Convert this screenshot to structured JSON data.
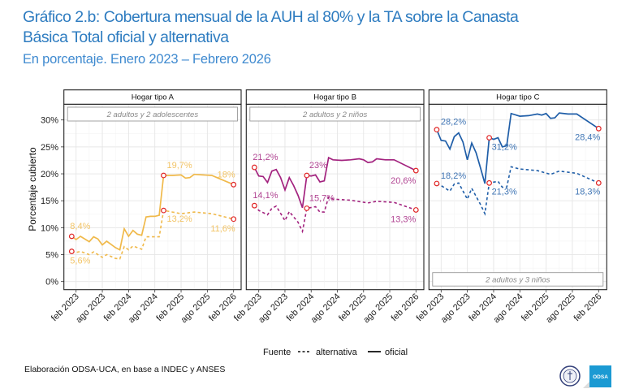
{
  "title": {
    "line1": "Gráfico 2.b: Cobertura mensual de la AUH al 80% y la TA sobre la Canasta",
    "line2": "Básica Total oficial y alternativa"
  },
  "subtitle": "En porcentaje. Enero 2023 – Febrero 2026",
  "footer": "Elaboración ODSA-UCA, en base a INDEC y ANSES",
  "logos": {
    "odsa": "ODSA",
    "seal": "UCA seal"
  },
  "colors": {
    "marker": "#e02424",
    "A": "#f0b94a",
    "B": "#a3237f",
    "C": "#1f5ea8"
  },
  "chart_data": {
    "type": "line",
    "ylabel": "Porcentaje cubierto",
    "ylim": [
      -1.5,
      32.5
    ],
    "yticks": [
      0,
      5,
      10,
      15,
      20,
      25,
      30
    ],
    "ytick_labels": [
      "0%",
      "5%",
      "10%",
      "15%",
      "20%",
      "25%",
      "30%"
    ],
    "x_unit": "months since feb 2023",
    "xticks": [
      0,
      6,
      12,
      18,
      24,
      30,
      36
    ],
    "xtick_labels": [
      "feb 2023",
      "ago 2023",
      "feb 2024",
      "ago 2024",
      "feb 2025",
      "ago 2025",
      "feb 2026"
    ],
    "legend": {
      "title": "Fuente",
      "items": [
        {
          "name": "alternativa",
          "style": "dashed"
        },
        {
          "name": "oficial",
          "style": "solid"
        }
      ],
      "placement": "bottom"
    },
    "panels": [
      {
        "strip": "Hogar tipo A",
        "note": "2 adultos y 2 adolescentes",
        "color_key": "A",
        "oficial": {
          "x": [
            -1,
            0,
            1,
            3,
            4,
            5,
            6,
            7,
            8,
            9,
            10,
            11,
            12,
            13,
            14,
            15,
            16,
            17,
            18,
            19,
            20,
            22,
            24,
            25,
            26,
            27,
            29,
            31,
            36
          ],
          "y": [
            8.4,
            7.8,
            8.4,
            7.4,
            8.3,
            7.9,
            6.8,
            7.5,
            6.9,
            6.3,
            5.9,
            9.8,
            8.4,
            9.5,
            8.8,
            8.6,
            12.0,
            12.1,
            12.1,
            12.3,
            19.7,
            19.7,
            19.8,
            19.2,
            19.3,
            19.9,
            19.8,
            19.7,
            18.0
          ]
        },
        "alternativa": {
          "x": [
            -1,
            0,
            1,
            3,
            4,
            6,
            7,
            9,
            10,
            11,
            12,
            13,
            14,
            15,
            16,
            18,
            19,
            20,
            22,
            24,
            27,
            31,
            36
          ],
          "y": [
            5.6,
            5.4,
            5.6,
            5.0,
            5.5,
            4.5,
            5.0,
            4.3,
            4.2,
            6.5,
            5.9,
            6.6,
            6.3,
            6.0,
            8.3,
            8.3,
            8.3,
            13.2,
            12.9,
            12.6,
            12.9,
            12.6,
            11.6
          ]
        },
        "labels": [
          "8,4%",
          "19,7%",
          "18%",
          "5,6%",
          "13,2%",
          "11,6%"
        ]
      },
      {
        "strip": "Hogar tipo B",
        "note": "2 adultos y 2 niños",
        "color_key": "B",
        "oficial": {
          "x": [
            -1,
            0,
            1,
            2,
            3,
            4,
            5,
            6,
            7,
            8,
            9,
            10,
            11,
            12,
            13,
            14,
            15,
            16,
            17,
            19,
            21,
            23,
            24,
            25,
            26,
            27,
            29,
            31,
            36
          ],
          "y": [
            21.2,
            19.6,
            19.5,
            18.4,
            20.5,
            20.8,
            19.3,
            17.0,
            19.3,
            17.8,
            16.0,
            13.7,
            19.7,
            19.6,
            19.8,
            18.5,
            18.7,
            23.0,
            22.6,
            22.5,
            22.6,
            22.8,
            22.6,
            22.1,
            22.2,
            22.8,
            22.6,
            22.6,
            20.6
          ]
        },
        "alternativa": {
          "x": [
            -1,
            0,
            2,
            3,
            4,
            6,
            7,
            9,
            10,
            11,
            13,
            14,
            15,
            16,
            17,
            21,
            25,
            27,
            31,
            36
          ],
          "y": [
            14.1,
            13.2,
            12.4,
            13.6,
            14.0,
            11.3,
            13.0,
            11.0,
            9.3,
            13.6,
            13.9,
            12.9,
            12.9,
            15.7,
            15.3,
            15.1,
            14.6,
            14.9,
            14.7,
            13.3
          ]
        },
        "labels": [
          "21,2%",
          "23%",
          "20,6%",
          "14,1%",
          "15,7%",
          "13,3%"
        ]
      },
      {
        "strip": "Hogar tipo C",
        "note": "2 adultos y 3 niños",
        "color_key": "C",
        "oficial": {
          "x": [
            -1,
            0,
            1,
            2,
            3,
            4,
            5,
            6,
            7,
            8,
            9,
            10,
            11,
            12,
            13,
            14,
            15,
            16,
            18,
            20,
            22,
            23,
            24,
            25,
            26,
            27,
            29,
            31,
            36
          ],
          "y": [
            28.2,
            26.2,
            26.1,
            24.6,
            26.9,
            27.6,
            25.9,
            22.6,
            25.7,
            23.9,
            21.1,
            18.2,
            26.7,
            26.4,
            26.7,
            25.0,
            25.2,
            31.2,
            30.7,
            30.8,
            31.1,
            30.9,
            31.2,
            30.3,
            30.4,
            31.3,
            31.1,
            31.1,
            28.4
          ]
        },
        "alternativa": {
          "x": [
            -1,
            0,
            2,
            3,
            4,
            6,
            7,
            9,
            10,
            11,
            13,
            14,
            15,
            16,
            18,
            22,
            25,
            27,
            31,
            36
          ],
          "y": [
            18.2,
            17.8,
            16.8,
            18.1,
            18.3,
            15.3,
            17.3,
            14.3,
            12.6,
            18.3,
            18.6,
            17.5,
            17.5,
            21.3,
            20.9,
            20.6,
            19.9,
            20.5,
            20.1,
            18.3
          ]
        },
        "labels": [
          "28,2%",
          "31,2%",
          "28,4%",
          "18,2%",
          "21,3%",
          "18,3%"
        ]
      }
    ]
  }
}
